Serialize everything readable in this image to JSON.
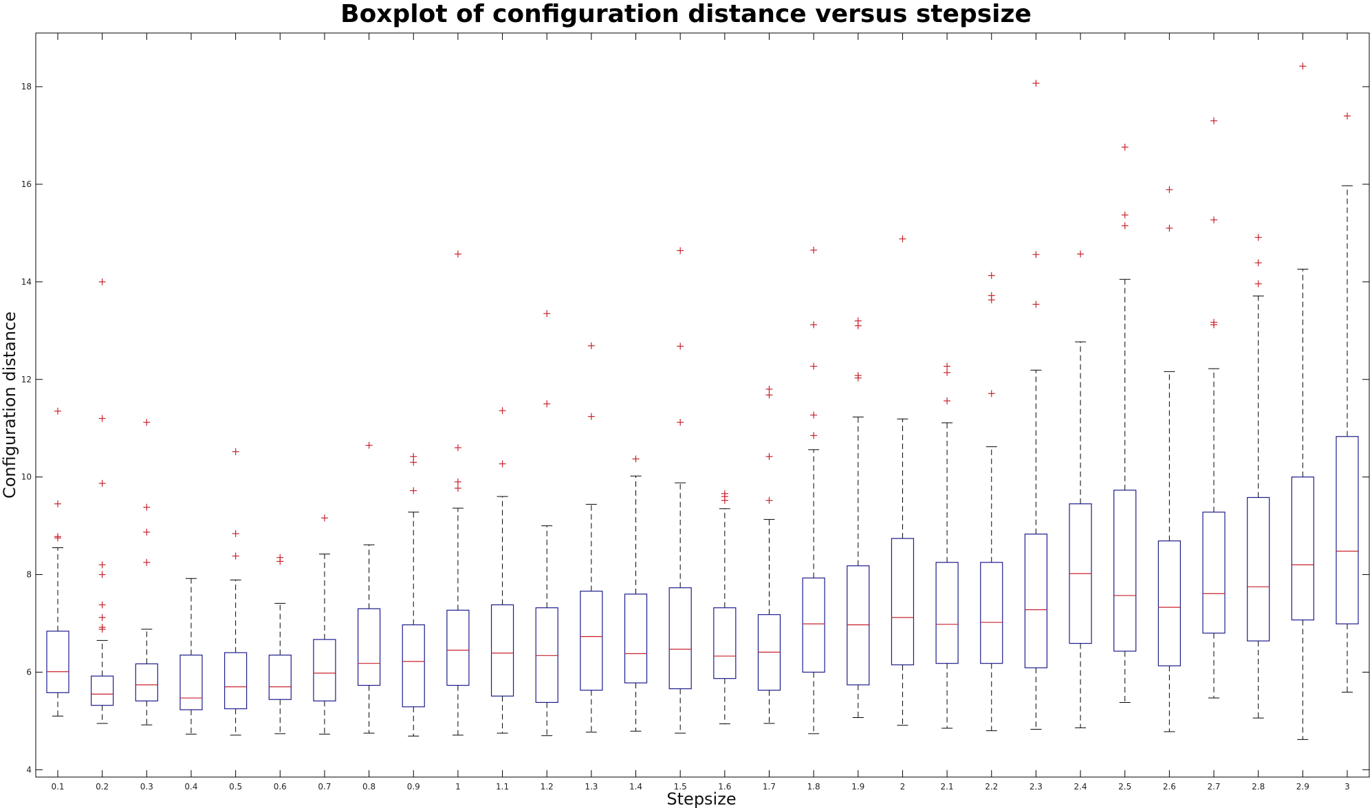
{
  "chart_data": {
    "type": "boxplot",
    "title": "Boxplot of configuration distance versus stepsize",
    "xlabel": "Stepsize",
    "ylabel": "Configuration distance",
    "ylim": [
      3.85,
      19.1
    ],
    "yticks": [
      4,
      6,
      8,
      10,
      12,
      14,
      16,
      18
    ],
    "grid": false,
    "colors": {
      "box": "#1a1a8c",
      "median": "#c8202a",
      "whisker": "#000000",
      "outlier": "#c8202a"
    },
    "categories": [
      "0.1",
      "0.2",
      "0.3",
      "0.4",
      "0.5",
      "0.6",
      "0.7",
      "0.8",
      "0.9",
      "1",
      "1.1",
      "1.2",
      "1.3",
      "1.4",
      "1.5",
      "1.6",
      "1.7",
      "1.8",
      "1.9",
      "2",
      "2.1",
      "2.2",
      "2.3",
      "2.4",
      "2.5",
      "2.6",
      "2.7",
      "2.8",
      "2.9",
      "3"
    ],
    "boxes": [
      {
        "q1": 5.58,
        "median": 6.01,
        "q3": 6.84,
        "whisker_low": 5.1,
        "whisker_high": 8.55,
        "outliers": [
          8.75,
          8.78,
          9.45,
          11.35
        ]
      },
      {
        "q1": 5.32,
        "median": 5.55,
        "q3": 5.92,
        "whisker_low": 4.95,
        "whisker_high": 6.65,
        "outliers": [
          6.88,
          6.92,
          7.12,
          7.38,
          8.0,
          8.2,
          9.87,
          11.2,
          14.0
        ]
      },
      {
        "q1": 5.41,
        "median": 5.74,
        "q3": 6.17,
        "whisker_low": 4.92,
        "whisker_high": 6.88,
        "outliers": [
          8.25,
          8.87,
          9.38,
          11.12
        ]
      },
      {
        "q1": 5.23,
        "median": 5.47,
        "q3": 6.35,
        "whisker_low": 4.73,
        "whisker_high": 7.92,
        "outliers": []
      },
      {
        "q1": 5.25,
        "median": 5.7,
        "q3": 6.4,
        "whisker_low": 4.71,
        "whisker_high": 7.89,
        "outliers": [
          8.38,
          8.84,
          10.52
        ]
      },
      {
        "q1": 5.44,
        "median": 5.7,
        "q3": 6.35,
        "whisker_low": 4.74,
        "whisker_high": 7.41,
        "outliers": [
          8.27,
          8.35
        ]
      },
      {
        "q1": 5.41,
        "median": 5.98,
        "q3": 6.67,
        "whisker_low": 4.73,
        "whisker_high": 8.42,
        "outliers": [
          9.16
        ]
      },
      {
        "q1": 5.73,
        "median": 6.18,
        "q3": 7.3,
        "whisker_low": 4.75,
        "whisker_high": 8.61,
        "outliers": [
          10.65
        ]
      },
      {
        "q1": 5.29,
        "median": 6.22,
        "q3": 6.97,
        "whisker_low": 4.69,
        "whisker_high": 9.28,
        "outliers": [
          9.72,
          10.3,
          10.42
        ]
      },
      {
        "q1": 5.73,
        "median": 6.45,
        "q3": 7.27,
        "whisker_low": 4.71,
        "whisker_high": 9.36,
        "outliers": [
          9.77,
          9.9,
          10.6,
          14.57
        ]
      },
      {
        "q1": 5.51,
        "median": 6.39,
        "q3": 7.38,
        "whisker_low": 4.75,
        "whisker_high": 9.6,
        "outliers": [
          10.27,
          11.36
        ]
      },
      {
        "q1": 5.38,
        "median": 6.34,
        "q3": 7.32,
        "whisker_low": 4.7,
        "whisker_high": 9.0,
        "outliers": [
          11.5,
          13.35
        ]
      },
      {
        "q1": 5.63,
        "median": 6.73,
        "q3": 7.66,
        "whisker_low": 4.77,
        "whisker_high": 9.44,
        "outliers": [
          11.24,
          12.69
        ]
      },
      {
        "q1": 5.78,
        "median": 6.38,
        "q3": 7.6,
        "whisker_low": 4.79,
        "whisker_high": 10.02,
        "outliers": [
          10.37
        ]
      },
      {
        "q1": 5.66,
        "median": 6.47,
        "q3": 7.73,
        "whisker_low": 4.75,
        "whisker_high": 9.88,
        "outliers": [
          11.12,
          12.68,
          14.64
        ]
      },
      {
        "q1": 5.87,
        "median": 6.33,
        "q3": 7.32,
        "whisker_low": 4.94,
        "whisker_high": 9.35,
        "outliers": [
          9.52,
          9.6,
          9.66
        ]
      },
      {
        "q1": 5.63,
        "median": 6.41,
        "q3": 7.18,
        "whisker_low": 4.95,
        "whisker_high": 9.13,
        "outliers": [
          9.52,
          10.42,
          11.68,
          11.8
        ]
      },
      {
        "q1": 6.0,
        "median": 6.99,
        "q3": 7.93,
        "whisker_low": 4.74,
        "whisker_high": 10.56,
        "outliers": [
          10.85,
          11.27,
          12.27,
          13.12,
          14.65
        ]
      },
      {
        "q1": 5.74,
        "median": 6.97,
        "q3": 8.18,
        "whisker_low": 5.07,
        "whisker_high": 11.23,
        "outliers": [
          12.03,
          12.08,
          13.1,
          13.2
        ]
      },
      {
        "q1": 6.15,
        "median": 7.12,
        "q3": 8.74,
        "whisker_low": 4.91,
        "whisker_high": 11.19,
        "outliers": [
          14.88
        ]
      },
      {
        "q1": 6.18,
        "median": 6.98,
        "q3": 8.25,
        "whisker_low": 4.85,
        "whisker_high": 11.11,
        "outliers": [
          11.56,
          12.14,
          12.27
        ]
      },
      {
        "q1": 6.18,
        "median": 7.02,
        "q3": 8.25,
        "whisker_low": 4.8,
        "whisker_high": 10.62,
        "outliers": [
          11.71,
          13.63,
          13.72,
          14.13
        ]
      },
      {
        "q1": 6.09,
        "median": 7.28,
        "q3": 8.83,
        "whisker_low": 4.83,
        "whisker_high": 12.19,
        "outliers": [
          13.54,
          14.56,
          18.07
        ]
      },
      {
        "q1": 6.59,
        "median": 8.02,
        "q3": 9.45,
        "whisker_low": 4.86,
        "whisker_high": 12.77,
        "outliers": [
          14.57
        ]
      },
      {
        "q1": 6.43,
        "median": 7.57,
        "q3": 9.73,
        "whisker_low": 5.38,
        "whisker_high": 14.05,
        "outliers": [
          15.15,
          15.37,
          16.76
        ]
      },
      {
        "q1": 6.13,
        "median": 7.33,
        "q3": 8.69,
        "whisker_low": 4.78,
        "whisker_high": 12.16,
        "outliers": [
          15.1,
          15.89
        ]
      },
      {
        "q1": 6.8,
        "median": 7.61,
        "q3": 9.28,
        "whisker_low": 5.47,
        "whisker_high": 12.22,
        "outliers": [
          13.12,
          13.17,
          15.27,
          17.3
        ]
      },
      {
        "q1": 6.64,
        "median": 7.75,
        "q3": 9.58,
        "whisker_low": 5.06,
        "whisker_high": 13.71,
        "outliers": [
          13.96,
          14.39,
          14.91
        ]
      },
      {
        "q1": 7.07,
        "median": 8.2,
        "q3": 10.0,
        "whisker_low": 4.62,
        "whisker_high": 14.26,
        "outliers": [
          18.42
        ]
      },
      {
        "q1": 6.99,
        "median": 8.48,
        "q3": 10.83,
        "whisker_low": 5.59,
        "whisker_high": 15.97,
        "outliers": [
          17.4
        ]
      }
    ]
  }
}
